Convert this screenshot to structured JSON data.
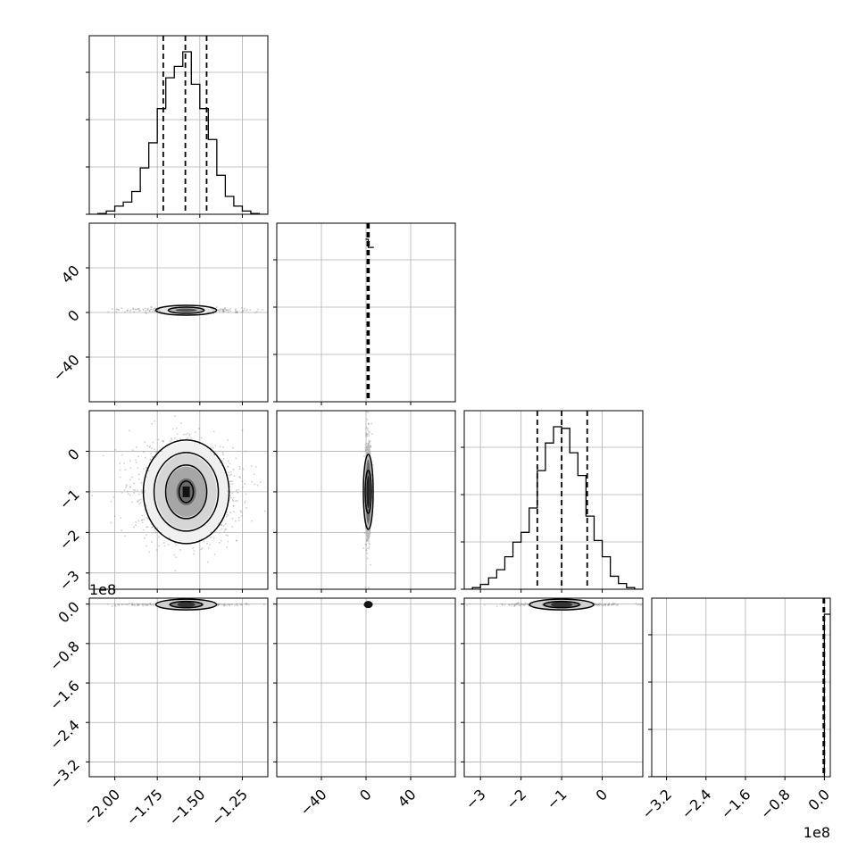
{
  "chart_data": {
    "type": "corner",
    "n_params": 4,
    "params": [
      {
        "range": [
          -2.15,
          -1.1
        ],
        "ticks": [
          -2.0,
          -1.75,
          -1.5,
          -1.25
        ],
        "tick_labels": [
          "−2.00",
          "−1.75",
          "−1.50",
          "−1.25"
        ],
        "quantiles": [
          -1.715,
          -1.585,
          -1.46
        ],
        "hist": {
          "edges": [
            -2.15,
            -2.1,
            -2.05,
            -2.0,
            -1.95,
            -1.9,
            -1.85,
            -1.8,
            -1.75,
            -1.7,
            -1.65,
            -1.6,
            -1.55,
            -1.5,
            -1.45,
            -1.4,
            -1.35,
            -1.3,
            -1.25,
            -1.2,
            -1.15,
            -1.1
          ],
          "counts": [
            0,
            0.005,
            0.02,
            0.05,
            0.075,
            0.14,
            0.285,
            0.44,
            0.65,
            0.84,
            0.91,
            1.0,
            0.8,
            0.65,
            0.46,
            0.24,
            0.11,
            0.05,
            0.02,
            0.005,
            0
          ]
        }
      },
      {
        "range": [
          -80,
          80
        ],
        "ticks": [
          -40,
          0,
          40
        ],
        "tick_labels": [
          "−40",
          "0",
          "40"
        ],
        "quantiles": [
          1.2,
          1.9,
          2.6
        ],
        "hist": {
          "edges": [
            -0.5,
            2,
            7
          ],
          "counts": [
            1.0,
            0.95
          ]
        }
      },
      {
        "range": [
          -3.4,
          1.0
        ],
        "ticks": [
          -3,
          -2,
          -1,
          0
        ],
        "tick_labels": [
          "−3",
          "−2",
          "−1",
          "0"
        ],
        "quantiles": [
          -1.6,
          -1.0,
          -0.37
        ],
        "hist": {
          "edges": [
            -3.4,
            -3.2,
            -3.0,
            -2.8,
            -2.6,
            -2.4,
            -2.2,
            -2.0,
            -1.8,
            -1.6,
            -1.4,
            -1.2,
            -1.0,
            -0.8,
            -0.6,
            -0.4,
            -0.2,
            0.0,
            0.2,
            0.4,
            0.6,
            0.8,
            1.0
          ],
          "counts": [
            0,
            0.01,
            0.03,
            0.07,
            0.12,
            0.2,
            0.29,
            0.35,
            0.5,
            0.73,
            0.9,
            1.0,
            0.99,
            0.84,
            0.7,
            0.45,
            0.3,
            0.2,
            0.08,
            0.035,
            0.01,
            0
          ]
        }
      },
      {
        "range": [
          -3.5,
          0.12
        ],
        "ticks": [
          -3.2,
          -2.4,
          -1.6,
          -0.8,
          0.0
        ],
        "tick_labels": [
          "−3.2",
          "−2.4",
          "−1.6",
          "−0.8",
          "0.0"
        ],
        "offset_label": "1e8",
        "quantiles": [
          -0.02,
          -0.01,
          0.0
        ],
        "hist": {
          "edges": [
            -3.5,
            0.0,
            0.12
          ],
          "counts": [
            0.0,
            1.0
          ]
        }
      }
    ],
    "ylim_scatter": {
      "1": [
        -80,
        80
      ],
      "2": [
        -3.4,
        1.0
      ],
      "3": [
        -3.5,
        0.12
      ]
    },
    "offset_text_row3": "1e8",
    "offset_text_x3": "1e8",
    "grid": true
  }
}
